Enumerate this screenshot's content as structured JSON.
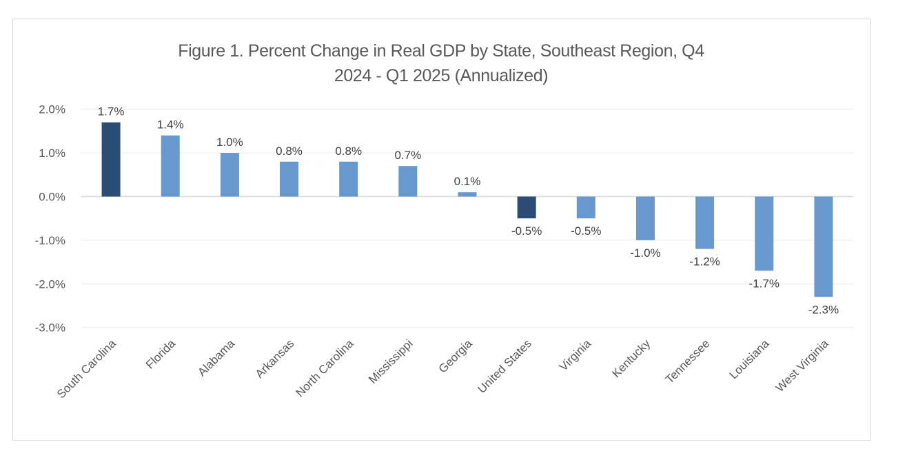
{
  "chart_data": {
    "type": "bar",
    "title": "Figure 1. Percent  Change in Real GDP by State, Southeast Region, Q4 2024 - Q1 2025 (Annualized)",
    "title_lines": [
      "Figure 1. Percent  Change in Real GDP by State, Southeast Region, Q4",
      "2024 - Q1 2025 (Annualized)"
    ],
    "xlabel": "",
    "ylabel": "",
    "categories": [
      "South Carolina",
      "Florida",
      "Alabama",
      "Arkansas",
      "North Carolina",
      "Mississippi",
      "Georgia",
      "United States",
      "Virginia",
      "Kentucky",
      "Tennessee",
      "Louisiana",
      "West Virginia"
    ],
    "values": [
      1.7,
      1.4,
      1.0,
      0.8,
      0.8,
      0.7,
      0.1,
      -0.5,
      -0.5,
      -1.0,
      -1.2,
      -1.7,
      -2.3
    ],
    "data_labels": [
      "1.7%",
      "1.4%",
      "1.0%",
      "0.8%",
      "0.8%",
      "0.7%",
      "0.1%",
      "-0.5%",
      "-0.5%",
      "-1.0%",
      "-1.2%",
      "-1.7%",
      "-2.3%"
    ],
    "highlighted": [
      "South Carolina",
      "United States"
    ],
    "ylim": [
      -3.0,
      2.0
    ],
    "yticks": [
      2.0,
      1.0,
      0.0,
      -1.0,
      -2.0,
      -3.0
    ],
    "ytick_labels": [
      "2.0%",
      "1.0%",
      "0.0%",
      "-1.0%",
      "-2.0%",
      "-3.0%"
    ],
    "grid": true,
    "legend": "none",
    "colors": {
      "highlight": "#2b4c74",
      "default": "#6799cf",
      "grid": "#ececec",
      "axis_zero": "#d9d9d9"
    }
  }
}
